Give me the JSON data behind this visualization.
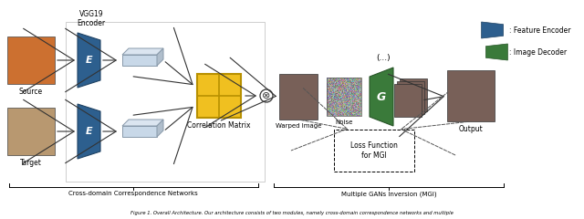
{
  "fig_width": 6.4,
  "fig_height": 2.4,
  "dpi": 100,
  "bg_color": "#ffffff",
  "source_label": "Source",
  "target_label": "Target",
  "vgg19_label": "VGG19\nEncoder",
  "encoder_color": "#2d5f8e",
  "encoder_color_dark": "#1a3a5c",
  "encoder_color_light": "#4a7aab",
  "feature_block_face": "#c8d8e8",
  "feature_block_light": "#dde8f2",
  "feature_block_dark": "#a8b8c8",
  "feature_block_edge": "#8899aa",
  "corr_face": "#f0c020",
  "corr_edge": "#b89000",
  "cross_domain_label": "Cross-domain Correspondence Networks",
  "multiple_gan_label": "Multiple GANs Inversion (MGI)",
  "warped_image_label": "Warped Image",
  "noise_label": "Noise",
  "output_label": "Output",
  "loss_label": "Loss Function\nfor MGI",
  "G_color": "#3a7a3a",
  "G_color_dark": "#1a5a1a",
  "G_color_light": "#5a9a5a",
  "G_label": "G",
  "feature_encoder_color": "#2d5f8e",
  "image_decoder_color": "#3a7a3a",
  "legend_feature_label": ": Feature Encoder",
  "legend_image_label": ": Image Decoder",
  "otimes_symbol": "⊗",
  "ellipsis_label": "(...)",
  "caption": "Figure 1. Overall Architecture. Our architecture consists of two modules, namely cross-domain correspondence networks and multiple"
}
